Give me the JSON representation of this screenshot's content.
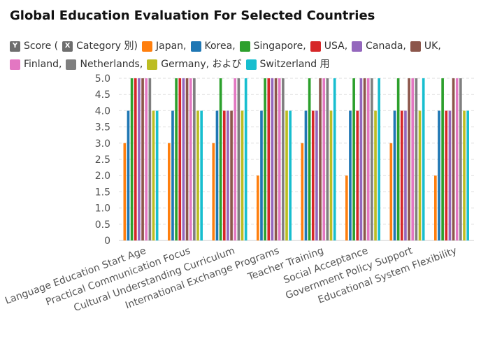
{
  "title": "Global Education Evaluation For Selected Countries",
  "legend": {
    "axis_items": [
      {
        "badge": "Y",
        "label": "Score ("
      },
      {
        "badge": "X",
        "label": "Category 別)"
      }
    ],
    "series_items": [
      {
        "label": "Japan,",
        "color": "#ff7f0e"
      },
      {
        "label": "Korea,",
        "color": "#1f77b4"
      },
      {
        "label": "Singapore,",
        "color": "#2ca02c"
      },
      {
        "label": "USA,",
        "color": "#d62728"
      },
      {
        "label": "Canada,",
        "color": "#9467bd"
      },
      {
        "label": "UK,",
        "color": "#8c564b"
      },
      {
        "label": "Finland,",
        "color": "#e377c2"
      },
      {
        "label": "Netherlands,",
        "color": "#7f7f7f"
      },
      {
        "label": "Germany, および",
        "color": "#bcbd22"
      },
      {
        "label": "Switzerland 用",
        "color": "#17becf"
      }
    ]
  },
  "chart_data": {
    "type": "bar",
    "categories": [
      "Language Education Start Age",
      "Practical Communication Focus",
      "Cultural Understanding Curriculum",
      "International Exchange Programs",
      "Teacher Training",
      "Social Acceptance",
      "Government Policy Support",
      "Educational System Flexibility"
    ],
    "series": [
      {
        "name": "Japan",
        "color": "#ff7f0e",
        "values": [
          3,
          3,
          3,
          2,
          3,
          2,
          3,
          2
        ]
      },
      {
        "name": "Korea",
        "color": "#1f77b4",
        "values": [
          4,
          4,
          4,
          4,
          4,
          4,
          4,
          4
        ]
      },
      {
        "name": "Singapore",
        "color": "#2ca02c",
        "values": [
          5,
          5,
          5,
          5,
          5,
          5,
          5,
          5
        ]
      },
      {
        "name": "USA",
        "color": "#d62728",
        "values": [
          5,
          5,
          4,
          5,
          4,
          4,
          4,
          4
        ]
      },
      {
        "name": "Canada",
        "color": "#9467bd",
        "values": [
          5,
          5,
          4,
          5,
          4,
          5,
          4,
          4
        ]
      },
      {
        "name": "UK",
        "color": "#8c564b",
        "values": [
          5,
          5,
          4,
          5,
          5,
          5,
          5,
          5
        ]
      },
      {
        "name": "Finland",
        "color": "#e377c2",
        "values": [
          5,
          5,
          5,
          5,
          5,
          5,
          5,
          5
        ]
      },
      {
        "name": "Netherlands",
        "color": "#7f7f7f",
        "values": [
          5,
          5,
          5,
          5,
          5,
          5,
          5,
          5
        ]
      },
      {
        "name": "Germany",
        "color": "#bcbd22",
        "values": [
          4,
          4,
          4,
          4,
          4,
          4,
          4,
          4
        ]
      },
      {
        "name": "Switzerland",
        "color": "#17becf",
        "values": [
          4,
          4,
          5,
          4,
          5,
          5,
          5,
          4
        ]
      }
    ],
    "yticks": [
      "0",
      "0.5",
      "1.0",
      "1.5",
      "2.0",
      "2.5",
      "3.0",
      "3.5",
      "4.0",
      "4.5",
      "5.0"
    ],
    "ylim": [
      0,
      5
    ],
    "grid": true,
    "legend_position": "top-left"
  }
}
